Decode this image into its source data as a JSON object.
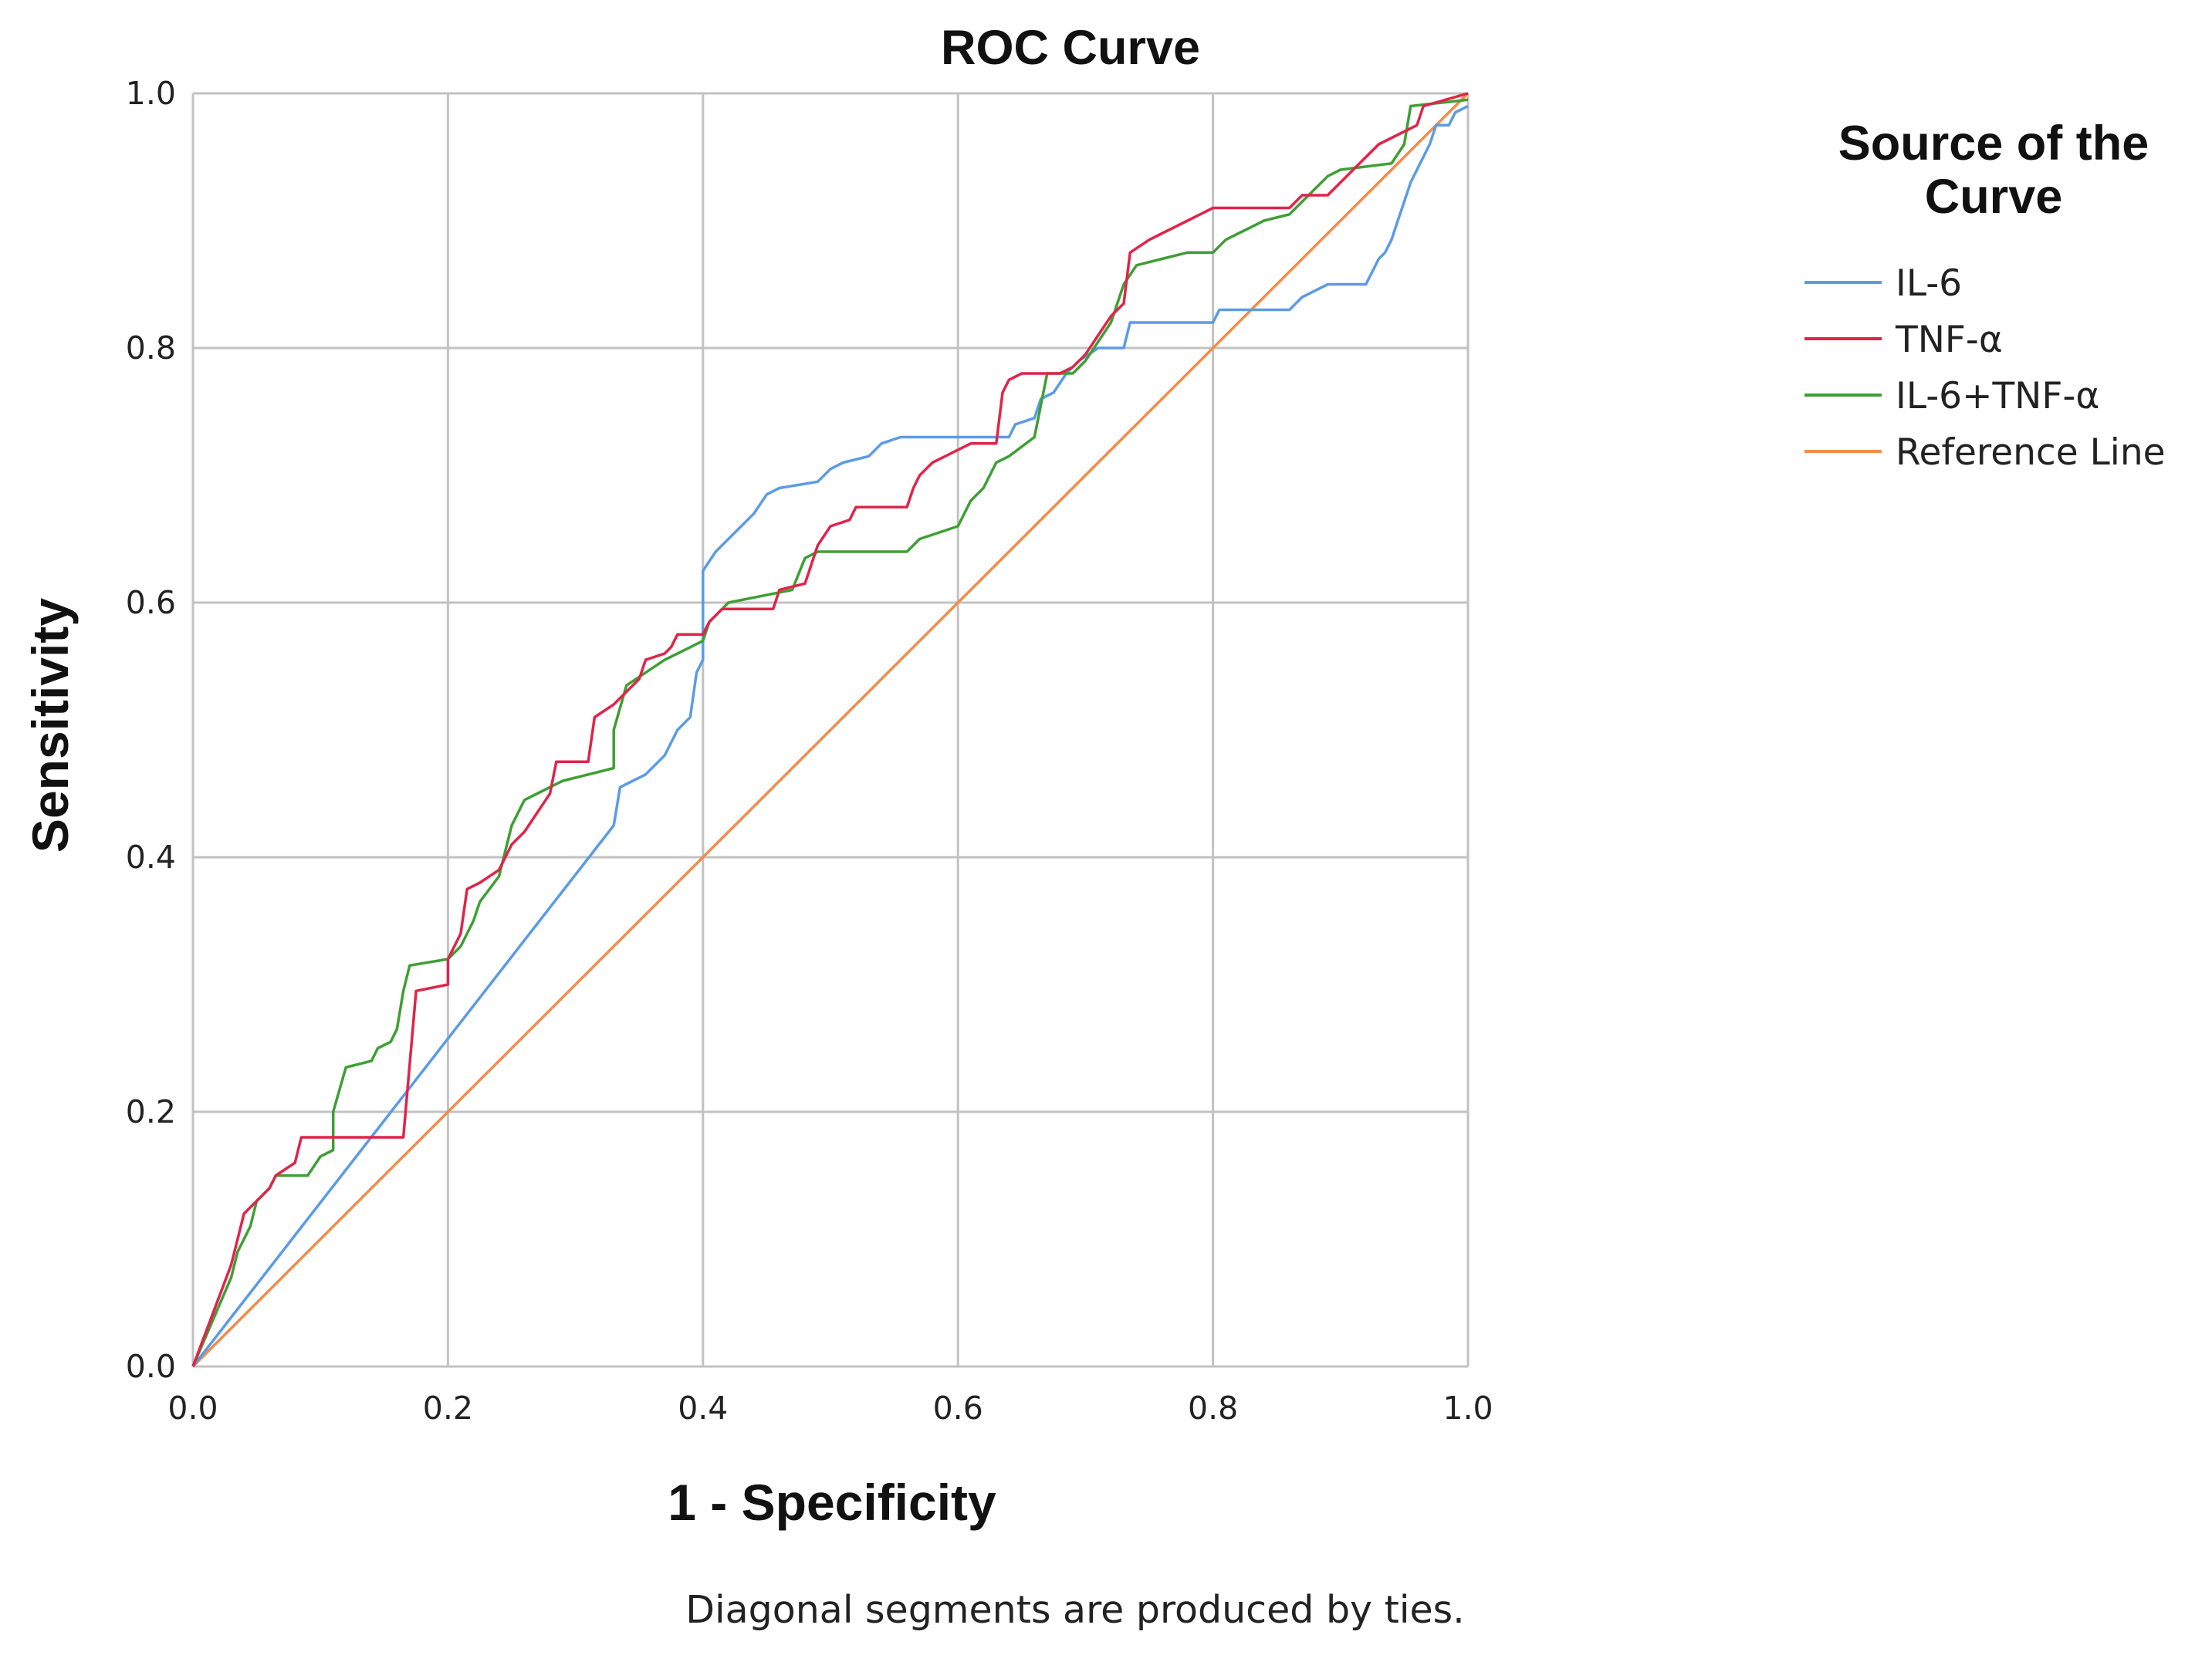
{
  "chart_data": {
    "type": "line",
    "title": "ROC Curve",
    "xlabel": "1 - Specificity",
    "ylabel": "Sensitivity",
    "xlim": [
      0,
      1
    ],
    "ylim": [
      0,
      1
    ],
    "xticks": [
      "0.0",
      "0.2",
      "0.4",
      "0.6",
      "0.8",
      "1.0"
    ],
    "yticks": [
      "0.0",
      "0.2",
      "0.4",
      "0.6",
      "0.8",
      "1.0"
    ],
    "grid": true,
    "legend": {
      "title_line1": "Source of the",
      "title_line2": "Curve",
      "position": "right"
    },
    "footnote": "Diagonal segments are produced by ties.",
    "series": [
      {
        "name": "IL-6",
        "color": "#5B9BE6",
        "points": [
          [
            0,
            0
          ],
          [
            0.33,
            0.425
          ],
          [
            0.335,
            0.455
          ],
          [
            0.345,
            0.46
          ],
          [
            0.355,
            0.465
          ],
          [
            0.36,
            0.47
          ],
          [
            0.37,
            0.48
          ],
          [
            0.375,
            0.49
          ],
          [
            0.38,
            0.5
          ],
          [
            0.39,
            0.51
          ],
          [
            0.395,
            0.545
          ],
          [
            0.4,
            0.555
          ],
          [
            0.4,
            0.625
          ],
          [
            0.41,
            0.64
          ],
          [
            0.42,
            0.65
          ],
          [
            0.43,
            0.66
          ],
          [
            0.44,
            0.67
          ],
          [
            0.45,
            0.685
          ],
          [
            0.46,
            0.69
          ],
          [
            0.49,
            0.695
          ],
          [
            0.5,
            0.705
          ],
          [
            0.51,
            0.71
          ],
          [
            0.53,
            0.715
          ],
          [
            0.54,
            0.725
          ],
          [
            0.555,
            0.73
          ],
          [
            0.64,
            0.73
          ],
          [
            0.645,
            0.74
          ],
          [
            0.66,
            0.745
          ],
          [
            0.665,
            0.76
          ],
          [
            0.675,
            0.765
          ],
          [
            0.685,
            0.78
          ],
          [
            0.695,
            0.79
          ],
          [
            0.71,
            0.8
          ],
          [
            0.73,
            0.8
          ],
          [
            0.735,
            0.82
          ],
          [
            0.8,
            0.82
          ],
          [
            0.805,
            0.83
          ],
          [
            0.86,
            0.83
          ],
          [
            0.87,
            0.84
          ],
          [
            0.88,
            0.845
          ],
          [
            0.89,
            0.85
          ],
          [
            0.92,
            0.85
          ],
          [
            0.925,
            0.86
          ],
          [
            0.93,
            0.87
          ],
          [
            0.935,
            0.875
          ],
          [
            0.94,
            0.885
          ],
          [
            0.945,
            0.9
          ],
          [
            0.95,
            0.915
          ],
          [
            0.955,
            0.93
          ],
          [
            0.96,
            0.94
          ],
          [
            0.97,
            0.96
          ],
          [
            0.975,
            0.975
          ],
          [
            0.985,
            0.975
          ],
          [
            0.99,
            0.985
          ],
          [
            1,
            0.99
          ]
        ]
      },
      {
        "name": "TNF-α",
        "color": "#E0244A",
        "points": [
          [
            0,
            0
          ],
          [
            0.03,
            0.08
          ],
          [
            0.04,
            0.12
          ],
          [
            0.05,
            0.13
          ],
          [
            0.06,
            0.14
          ],
          [
            0.065,
            0.15
          ],
          [
            0.08,
            0.16
          ],
          [
            0.085,
            0.18
          ],
          [
            0.165,
            0.18
          ],
          [
            0.175,
            0.295
          ],
          [
            0.2,
            0.3
          ],
          [
            0.2,
            0.32
          ],
          [
            0.21,
            0.34
          ],
          [
            0.215,
            0.375
          ],
          [
            0.225,
            0.38
          ],
          [
            0.24,
            0.39
          ],
          [
            0.25,
            0.41
          ],
          [
            0.26,
            0.42
          ],
          [
            0.27,
            0.435
          ],
          [
            0.28,
            0.45
          ],
          [
            0.285,
            0.475
          ],
          [
            0.31,
            0.475
          ],
          [
            0.315,
            0.51
          ],
          [
            0.33,
            0.52
          ],
          [
            0.34,
            0.53
          ],
          [
            0.35,
            0.54
          ],
          [
            0.355,
            0.555
          ],
          [
            0.37,
            0.56
          ],
          [
            0.375,
            0.565
          ],
          [
            0.38,
            0.575
          ],
          [
            0.4,
            0.575
          ],
          [
            0.405,
            0.585
          ],
          [
            0.415,
            0.595
          ],
          [
            0.455,
            0.595
          ],
          [
            0.46,
            0.61
          ],
          [
            0.48,
            0.615
          ],
          [
            0.49,
            0.645
          ],
          [
            0.5,
            0.66
          ],
          [
            0.515,
            0.665
          ],
          [
            0.52,
            0.675
          ],
          [
            0.56,
            0.675
          ],
          [
            0.565,
            0.69
          ],
          [
            0.57,
            0.7
          ],
          [
            0.58,
            0.71
          ],
          [
            0.59,
            0.715
          ],
          [
            0.61,
            0.725
          ],
          [
            0.63,
            0.725
          ],
          [
            0.635,
            0.765
          ],
          [
            0.64,
            0.775
          ],
          [
            0.65,
            0.78
          ],
          [
            0.68,
            0.78
          ],
          [
            0.69,
            0.785
          ],
          [
            0.7,
            0.795
          ],
          [
            0.71,
            0.81
          ],
          [
            0.72,
            0.825
          ],
          [
            0.73,
            0.835
          ],
          [
            0.735,
            0.875
          ],
          [
            0.75,
            0.885
          ],
          [
            0.76,
            0.89
          ],
          [
            0.77,
            0.895
          ],
          [
            0.78,
            0.9
          ],
          [
            0.79,
            0.905
          ],
          [
            0.8,
            0.91
          ],
          [
            0.86,
            0.91
          ],
          [
            0.87,
            0.92
          ],
          [
            0.89,
            0.92
          ],
          [
            0.9,
            0.93
          ],
          [
            0.91,
            0.94
          ],
          [
            0.92,
            0.95
          ],
          [
            0.93,
            0.96
          ],
          [
            0.95,
            0.97
          ],
          [
            0.96,
            0.975
          ],
          [
            0.965,
            0.99
          ],
          [
            1,
            1
          ]
        ]
      },
      {
        "name": "IL-6+TNF-α",
        "color": "#3E9F34",
        "points": [
          [
            0,
            0
          ],
          [
            0.03,
            0.07
          ],
          [
            0.035,
            0.09
          ],
          [
            0.045,
            0.11
          ],
          [
            0.05,
            0.13
          ],
          [
            0.06,
            0.14
          ],
          [
            0.065,
            0.15
          ],
          [
            0.09,
            0.15
          ],
          [
            0.1,
            0.165
          ],
          [
            0.11,
            0.17
          ],
          [
            0.11,
            0.2
          ],
          [
            0.12,
            0.235
          ],
          [
            0.14,
            0.24
          ],
          [
            0.145,
            0.25
          ],
          [
            0.155,
            0.255
          ],
          [
            0.16,
            0.265
          ],
          [
            0.165,
            0.295
          ],
          [
            0.17,
            0.315
          ],
          [
            0.2,
            0.32
          ],
          [
            0.21,
            0.33
          ],
          [
            0.22,
            0.35
          ],
          [
            0.225,
            0.365
          ],
          [
            0.24,
            0.385
          ],
          [
            0.25,
            0.425
          ],
          [
            0.26,
            0.445
          ],
          [
            0.27,
            0.45
          ],
          [
            0.29,
            0.46
          ],
          [
            0.31,
            0.465
          ],
          [
            0.33,
            0.47
          ],
          [
            0.33,
            0.5
          ],
          [
            0.34,
            0.535
          ],
          [
            0.355,
            0.545
          ],
          [
            0.37,
            0.555
          ],
          [
            0.38,
            0.56
          ],
          [
            0.39,
            0.565
          ],
          [
            0.4,
            0.57
          ],
          [
            0.405,
            0.585
          ],
          [
            0.42,
            0.6
          ],
          [
            0.47,
            0.61
          ],
          [
            0.48,
            0.635
          ],
          [
            0.49,
            0.64
          ],
          [
            0.56,
            0.64
          ],
          [
            0.57,
            0.65
          ],
          [
            0.6,
            0.66
          ],
          [
            0.61,
            0.68
          ],
          [
            0.62,
            0.69
          ],
          [
            0.63,
            0.71
          ],
          [
            0.64,
            0.715
          ],
          [
            0.66,
            0.73
          ],
          [
            0.67,
            0.78
          ],
          [
            0.69,
            0.78
          ],
          [
            0.7,
            0.79
          ],
          [
            0.71,
            0.805
          ],
          [
            0.72,
            0.82
          ],
          [
            0.73,
            0.85
          ],
          [
            0.74,
            0.865
          ],
          [
            0.76,
            0.87
          ],
          [
            0.78,
            0.875
          ],
          [
            0.8,
            0.875
          ],
          [
            0.81,
            0.885
          ],
          [
            0.82,
            0.89
          ],
          [
            0.83,
            0.895
          ],
          [
            0.84,
            0.9
          ],
          [
            0.86,
            0.905
          ],
          [
            0.87,
            0.915
          ],
          [
            0.88,
            0.925
          ],
          [
            0.89,
            0.935
          ],
          [
            0.9,
            0.94
          ],
          [
            0.94,
            0.945
          ],
          [
            0.95,
            0.96
          ],
          [
            0.955,
            0.99
          ],
          [
            1,
            0.995
          ]
        ]
      },
      {
        "name": "Reference Line",
        "color": "#F28C4B",
        "points": [
          [
            0,
            0
          ],
          [
            1,
            1
          ]
        ]
      }
    ]
  }
}
